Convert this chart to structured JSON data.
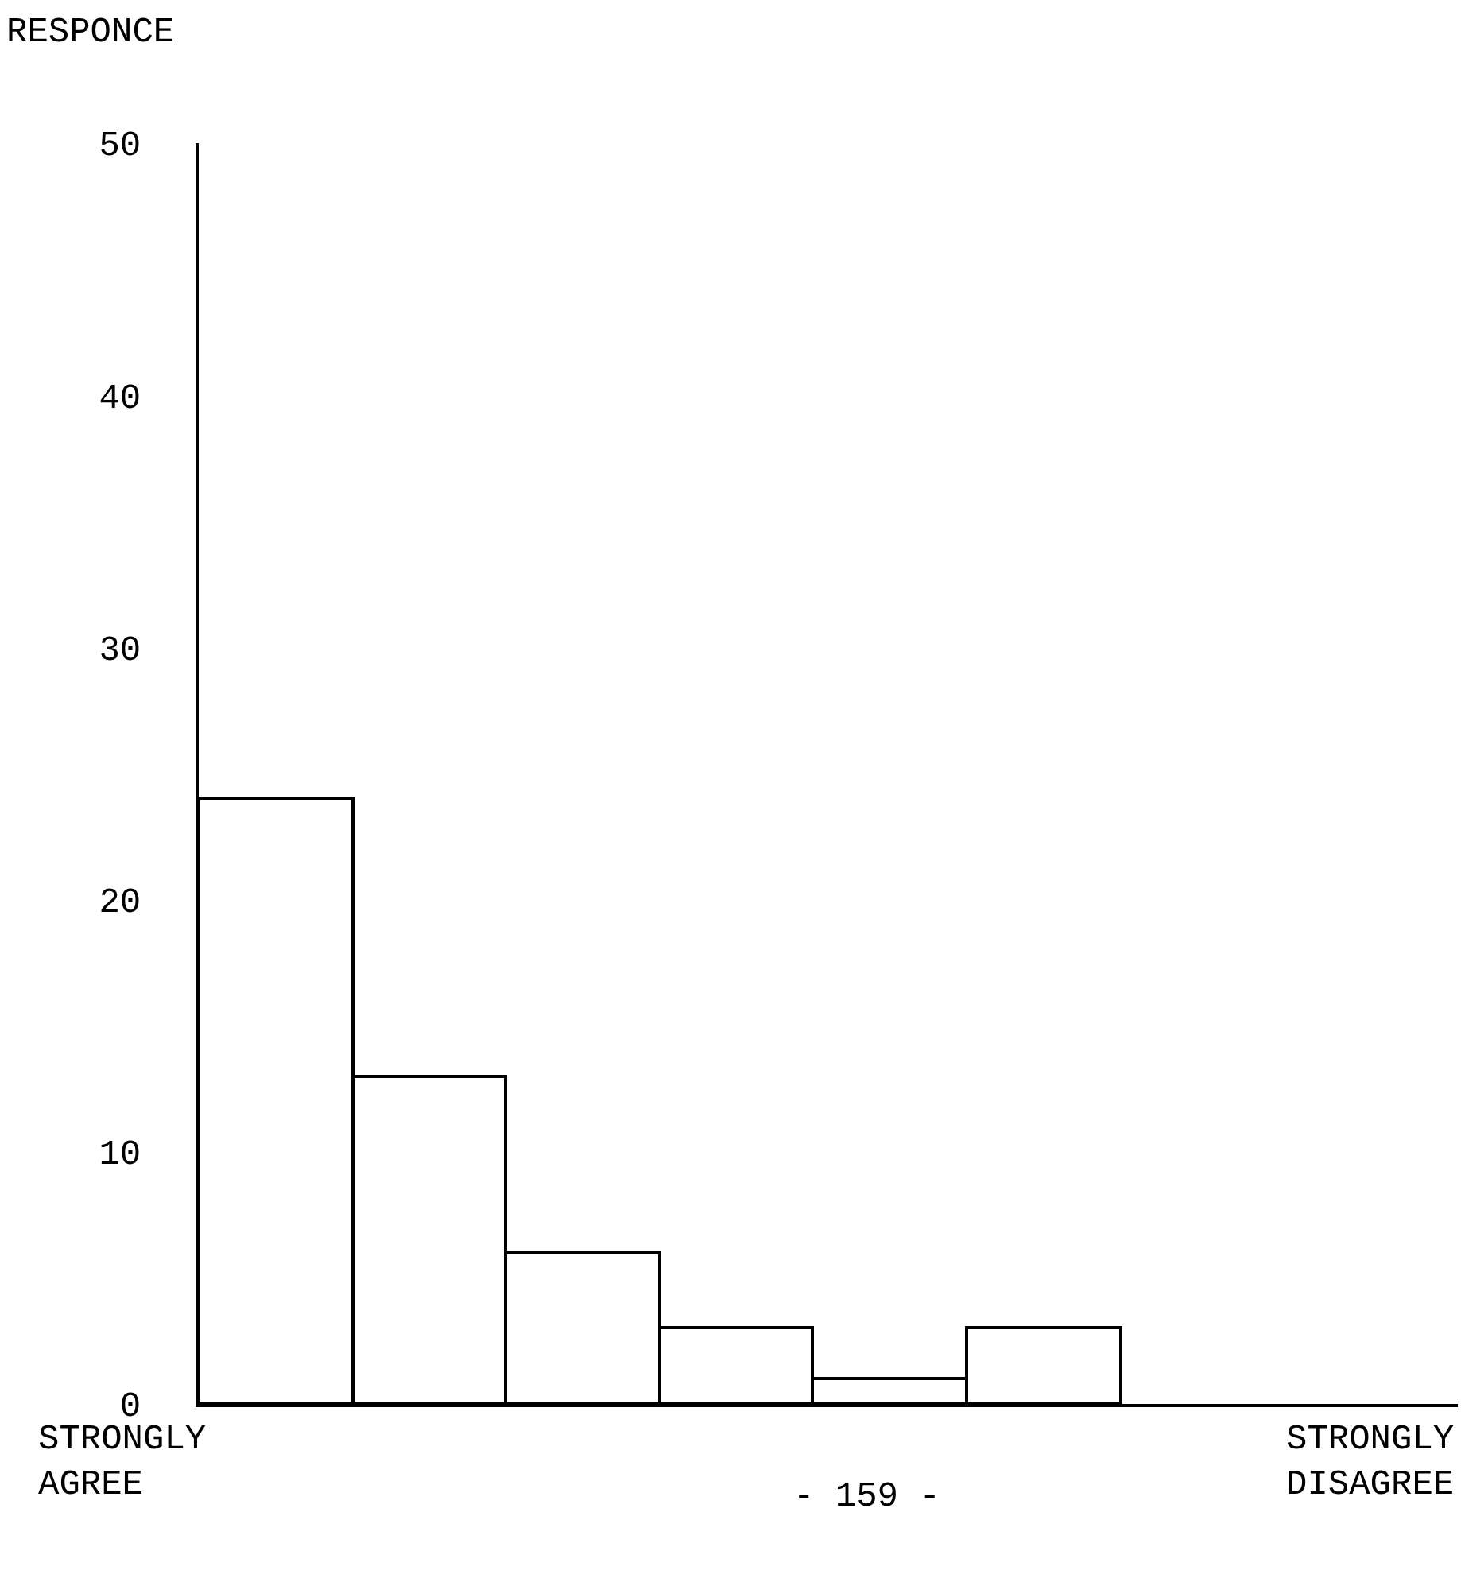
{
  "chart_data": {
    "type": "bar",
    "ylabel": "RESPONCE",
    "categories": [
      null,
      null,
      null,
      null,
      null,
      null
    ],
    "values": [
      24,
      13,
      6,
      3,
      1,
      3
    ],
    "color": "#ffffff",
    "ylim": [
      0,
      50
    ],
    "yticks": [
      0,
      10,
      20,
      30,
      40,
      50
    ],
    "grid": false,
    "legend": false,
    "annotations": [
      "STRONGLY AGREE",
      "STRONGLY DISAGREE",
      "- 159 -"
    ]
  }
}
